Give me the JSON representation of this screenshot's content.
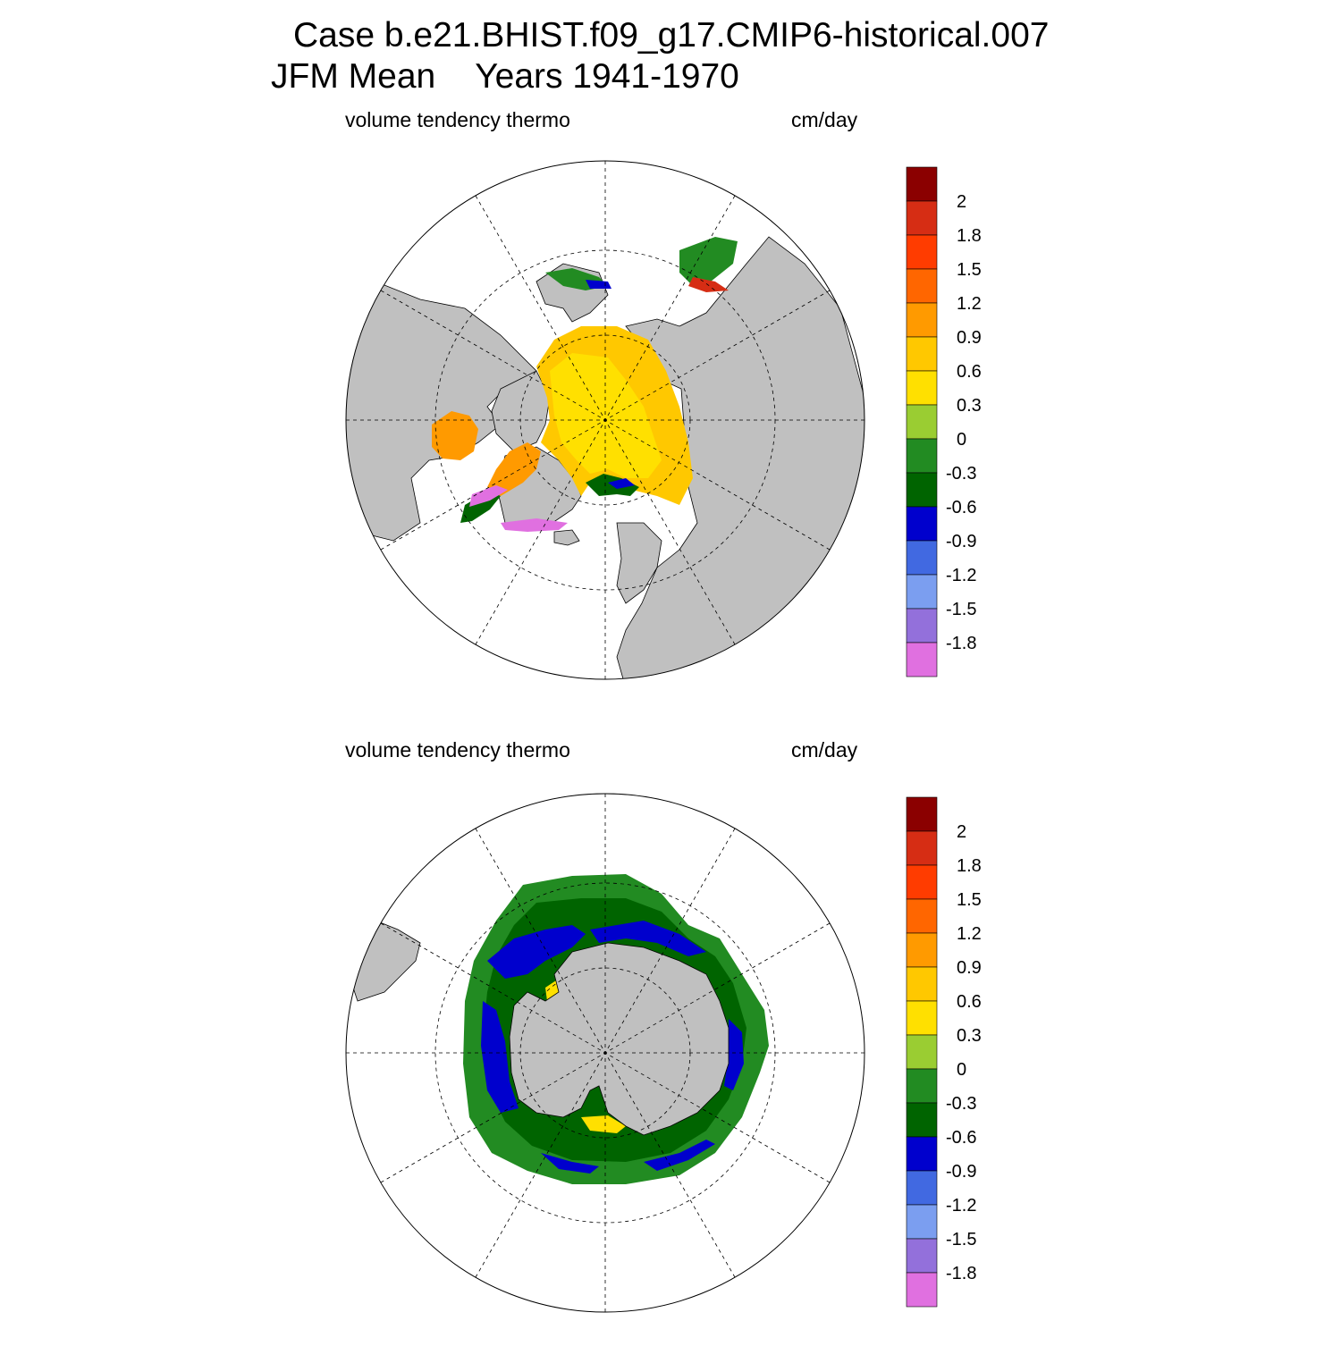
{
  "figure": {
    "title_line1": "Case b.e21.BHIST.f09_g17.CMIP6-historical.007",
    "title_season": "JFM Mean",
    "title_years": "Years 1941-1970"
  },
  "colorbar": {
    "labels": [
      "2",
      "1.8",
      "1.5",
      "1.2",
      "0.9",
      "0.6",
      "0.3",
      "0",
      "-0.3",
      "-0.6",
      "-0.9",
      "-1.2",
      "-1.5",
      "-1.8"
    ],
    "colors": [
      "#8b0000",
      "#d62d14",
      "#ff3c00",
      "#ff6600",
      "#ff9a00",
      "#ffc800",
      "#ffe000",
      "#9acd32",
      "#228b22",
      "#006400",
      "#0000cd",
      "#4169e1",
      "#7b9ef0",
      "#9370db",
      "#e070e0"
    ]
  },
  "colors": {
    "land": "#c0c0c0",
    "ocean": "#ffffff"
  },
  "panels": [
    {
      "id": "north",
      "hemisphere": "Northern",
      "variable": "volume tendency thermo",
      "units": "cm/day"
    },
    {
      "id": "south",
      "hemisphere": "Southern",
      "variable": "volume tendency thermo",
      "units": "cm/day"
    }
  ]
}
